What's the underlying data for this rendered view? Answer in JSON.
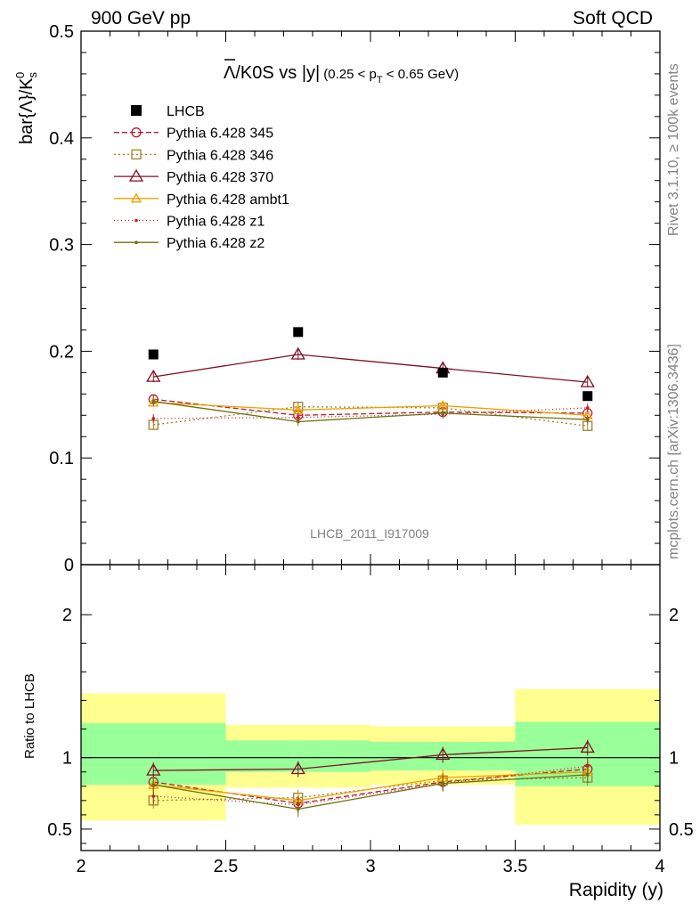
{
  "header": {
    "left": "900 GeV pp",
    "right": "Soft QCD"
  },
  "side_labels": {
    "rivet": "Rivet 3.1.10, ≥ 100k events",
    "mcplots": "mcplots.cern.ch [arXiv:1306.3436]"
  },
  "watermark": "LHCB_2011_I917009",
  "chart_data": [
    {
      "type": "scatter",
      "title": {
        "bar": "Λ",
        "rest": "/K0S vs |y|",
        "sub_open": "(0.25 < p",
        "sub_index": "T",
        "sub_close": " < 0.65 GeV)"
      },
      "ylabel": {
        "main": "bar{Λ}/K",
        "sup": "0",
        "sub": "s"
      },
      "xlim": [
        2,
        4
      ],
      "ylim": [
        0,
        0.5
      ],
      "yticks": [
        "0",
        "0.1",
        "0.2",
        "0.3",
        "0.4",
        "0.5"
      ],
      "x": [
        2.25,
        2.75,
        3.25,
        3.75
      ],
      "x_err": 0.25,
      "data": {
        "name": "LHCB",
        "values": [
          0.197,
          0.218,
          0.18,
          0.158
        ]
      },
      "series": [
        {
          "name": "Pythia 6.428 345",
          "color": "#b02030",
          "dash": "6,3",
          "marker": "circle",
          "values": [
            0.155,
            0.14,
            0.143,
            0.142
          ],
          "err": [
            0.004,
            0.004,
            0.004,
            0.004
          ]
        },
        {
          "name": "Pythia 6.428 346",
          "color": "#a08030",
          "dash": "2,3",
          "marker": "square",
          "values": [
            0.131,
            0.148,
            0.147,
            0.13
          ],
          "err": [
            0.004,
            0.004,
            0.004,
            0.004
          ]
        },
        {
          "name": "Pythia 6.428 370",
          "color": "#801020",
          "dash": "",
          "marker": "triangle",
          "values": [
            0.176,
            0.197,
            0.184,
            0.171
          ],
          "err": [
            0.005,
            0.005,
            0.005,
            0.005
          ]
        },
        {
          "name": "Pythia 6.428 ambt1",
          "color": "#f0a000",
          "dash": "",
          "marker": "triangle-small",
          "values": [
            0.152,
            0.145,
            0.149,
            0.14
          ],
          "err": [
            0.004,
            0.004,
            0.004,
            0.004
          ]
        },
        {
          "name": "Pythia 6.428 z1",
          "color": "#c02020",
          "dash": "1,3",
          "marker": "dot",
          "values": [
            0.137,
            0.138,
            0.141,
            0.147
          ],
          "err": [
            0.004,
            0.004,
            0.004,
            0.004
          ]
        },
        {
          "name": "Pythia 6.428 z2",
          "color": "#707010",
          "dash": "",
          "marker": "dot",
          "values": [
            0.153,
            0.134,
            0.142,
            0.136
          ],
          "err": [
            0.004,
            0.004,
            0.004,
            0.004
          ]
        }
      ]
    },
    {
      "type": "scatter",
      "ylabel": "Ratio to LHCB",
      "xlabel": "Rapidity (y)",
      "xlim": [
        2,
        4
      ],
      "ylim": [
        0.35,
        2.35
      ],
      "yticks": [
        "0.5",
        "1",
        "2"
      ],
      "xticks": [
        "2",
        "2.5",
        "3",
        "3.5",
        "4"
      ],
      "bands": {
        "x_edges": [
          [
            2.0,
            2.5
          ],
          [
            2.5,
            3.0
          ],
          [
            3.0,
            3.5
          ],
          [
            3.5,
            4.0
          ]
        ],
        "yellow": [
          [
            0.56,
            1.45
          ],
          [
            0.79,
            1.23
          ],
          [
            0.81,
            1.22
          ],
          [
            0.53,
            1.48
          ]
        ],
        "green": [
          [
            0.81,
            1.24
          ],
          [
            0.9,
            1.12
          ],
          [
            0.91,
            1.11
          ],
          [
            0.8,
            1.25
          ]
        ]
      },
      "series": [
        {
          "name": "Pythia 6.428 345",
          "values": [
            0.83,
            0.68,
            0.83,
            0.92
          ]
        },
        {
          "name": "Pythia 6.428 346",
          "values": [
            0.7,
            0.72,
            0.84,
            0.86
          ]
        },
        {
          "name": "Pythia 6.428 370",
          "values": [
            0.91,
            0.92,
            1.02,
            1.07
          ]
        },
        {
          "name": "Pythia 6.428 ambt1",
          "values": [
            0.81,
            0.7,
            0.86,
            0.9
          ]
        },
        {
          "name": "Pythia 6.428 z1",
          "values": [
            0.73,
            0.67,
            0.82,
            0.94
          ]
        },
        {
          "name": "Pythia 6.428 z2",
          "values": [
            0.81,
            0.64,
            0.82,
            0.88
          ]
        }
      ]
    }
  ]
}
